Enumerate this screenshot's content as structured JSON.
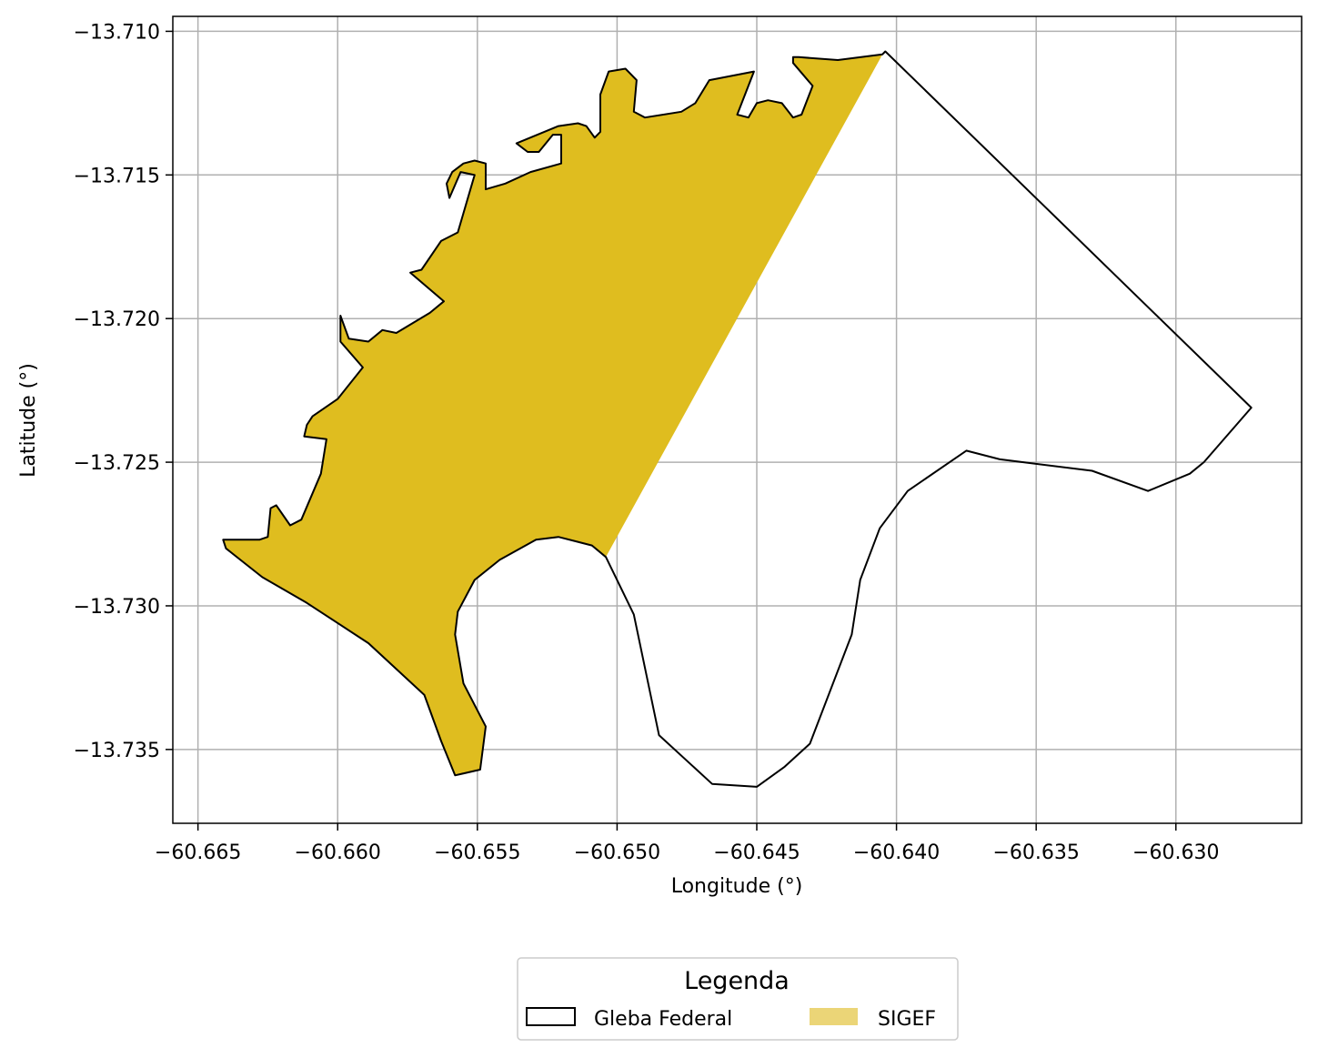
{
  "chart_data": {
    "type": "map",
    "xlabel": "Longitude (°)",
    "ylabel": "Latitude (°)",
    "xlim": [
      -60.6659,
      -60.6255
    ],
    "ylim": [
      -13.73757,
      -13.70948
    ],
    "xticks": [
      -60.665,
      -60.66,
      -60.655,
      -60.65,
      -60.645,
      -60.64,
      -60.635,
      -60.63
    ],
    "xtick_labels": [
      "−60.665",
      "−60.660",
      "−60.655",
      "−60.650",
      "−60.645",
      "−60.640",
      "−60.635",
      "−60.630"
    ],
    "yticks": [
      -13.71,
      -13.715,
      -13.72,
      -13.725,
      -13.73,
      -13.735
    ],
    "ytick_labels": [
      "−13.710",
      "−13.715",
      "−13.720",
      "−13.725",
      "−13.730",
      "−13.735"
    ],
    "grid": true,
    "legend": {
      "title": "Legenda",
      "position": "bottom-center",
      "entries": [
        {
          "label": "Gleba Federal",
          "style": "outline"
        },
        {
          "label": "SIGEF",
          "style": "filled"
        }
      ]
    },
    "colors": {
      "sigef_fill": "#dfbd1f",
      "sigef_legend": "#ebd577",
      "boundary": "#000000",
      "grid": "#b0b0b0"
    },
    "layers": [
      {
        "name": "SIGEF",
        "coordinates": [
          [
            -60.6405,
            -13.7108
          ],
          [
            -60.6504,
            -13.7283
          ],
          [
            -60.6509,
            -13.7279
          ],
          [
            -60.6521,
            -13.7276
          ],
          [
            -60.6529,
            -13.7277
          ],
          [
            -60.6542,
            -13.7284
          ],
          [
            -60.6551,
            -13.7291
          ],
          [
            -60.6557,
            -13.7302
          ],
          [
            -60.6558,
            -13.731
          ],
          [
            -60.6555,
            -13.7327
          ],
          [
            -60.6547,
            -13.7342
          ],
          [
            -60.6549,
            -13.7357
          ],
          [
            -60.6558,
            -13.7359
          ],
          [
            -60.6563,
            -13.7347
          ],
          [
            -60.6569,
            -13.7331
          ],
          [
            -60.6589,
            -13.7313
          ],
          [
            -60.6611,
            -13.7299
          ],
          [
            -60.6627,
            -13.729
          ],
          [
            -60.664,
            -13.728
          ],
          [
            -60.6641,
            -13.7277
          ],
          [
            -60.6628,
            -13.7277
          ],
          [
            -60.6625,
            -13.7276
          ],
          [
            -60.6624,
            -13.7266
          ],
          [
            -60.6622,
            -13.7265
          ],
          [
            -60.6617,
            -13.7272
          ],
          [
            -60.6613,
            -13.727
          ],
          [
            -60.6606,
            -13.7254
          ],
          [
            -60.6604,
            -13.7242
          ],
          [
            -60.6612,
            -13.7241
          ],
          [
            -60.6611,
            -13.7237
          ],
          [
            -60.6609,
            -13.7234
          ],
          [
            -60.66,
            -13.7228
          ],
          [
            -60.6591,
            -13.7217
          ],
          [
            -60.6599,
            -13.7208
          ],
          [
            -60.6599,
            -13.7199
          ],
          [
            -60.6596,
            -13.7207
          ],
          [
            -60.6589,
            -13.7208
          ],
          [
            -60.6584,
            -13.7204
          ],
          [
            -60.6579,
            -13.7205
          ],
          [
            -60.6567,
            -13.7198
          ],
          [
            -60.6562,
            -13.7194
          ],
          [
            -60.6574,
            -13.7184
          ],
          [
            -60.657,
            -13.7183
          ],
          [
            -60.6563,
            -13.7173
          ],
          [
            -60.6557,
            -13.717
          ],
          [
            -60.6551,
            -13.715
          ],
          [
            -60.6556,
            -13.7149
          ],
          [
            -60.656,
            -13.7158
          ],
          [
            -60.6561,
            -13.7153
          ],
          [
            -60.6559,
            -13.7149
          ],
          [
            -60.6555,
            -13.7146
          ],
          [
            -60.6551,
            -13.7145
          ],
          [
            -60.6547,
            -13.7146
          ],
          [
            -60.6547,
            -13.7155
          ],
          [
            -60.654,
            -13.7153
          ],
          [
            -60.6531,
            -13.7149
          ],
          [
            -60.652,
            -13.7146
          ],
          [
            -60.652,
            -13.7136
          ],
          [
            -60.6523,
            -13.7136
          ],
          [
            -60.6528,
            -13.7142
          ],
          [
            -60.6532,
            -13.7142
          ],
          [
            -60.6536,
            -13.7139
          ],
          [
            -60.6521,
            -13.7133
          ],
          [
            -60.6514,
            -13.7132
          ],
          [
            -60.6511,
            -13.7133
          ],
          [
            -60.6508,
            -13.7137
          ],
          [
            -60.6506,
            -13.7135
          ],
          [
            -60.6506,
            -13.7122
          ],
          [
            -60.6503,
            -13.7114
          ],
          [
            -60.6497,
            -13.7113
          ],
          [
            -60.6493,
            -13.7117
          ],
          [
            -60.6494,
            -13.7128
          ],
          [
            -60.649,
            -13.713
          ],
          [
            -60.6477,
            -13.7128
          ],
          [
            -60.6472,
            -13.7125
          ],
          [
            -60.6467,
            -13.7117
          ],
          [
            -60.6451,
            -13.7114
          ],
          [
            -60.6457,
            -13.7129
          ],
          [
            -60.6453,
            -13.713
          ],
          [
            -60.645,
            -13.7125
          ],
          [
            -60.6446,
            -13.7124
          ],
          [
            -60.6441,
            -13.7125
          ],
          [
            -60.6437,
            -13.713
          ],
          [
            -60.6434,
            -13.7129
          ],
          [
            -60.643,
            -13.7119
          ],
          [
            -60.6437,
            -13.7111
          ],
          [
            -60.6437,
            -13.7109
          ],
          [
            -60.6435,
            -13.7109
          ],
          [
            -60.6421,
            -13.711
          ],
          [
            -60.6405,
            -13.7108
          ]
        ]
      },
      {
        "name": "Gleba Federal",
        "coordinates": [
          [
            -60.6405,
            -13.7108
          ],
          [
            -60.6404,
            -13.7107
          ],
          [
            -60.6273,
            -13.7231
          ],
          [
            -60.629,
            -13.725
          ],
          [
            -60.6295,
            -13.7254
          ],
          [
            -60.631,
            -13.726
          ],
          [
            -60.633,
            -13.7253
          ],
          [
            -60.6363,
            -13.7249
          ],
          [
            -60.6375,
            -13.7246
          ],
          [
            -60.6396,
            -13.726
          ],
          [
            -60.6406,
            -13.7273
          ],
          [
            -60.6413,
            -13.7291
          ],
          [
            -60.6416,
            -13.731
          ],
          [
            -60.6431,
            -13.7348
          ],
          [
            -60.644,
            -13.7356
          ],
          [
            -60.645,
            -13.7363
          ],
          [
            -60.6466,
            -13.7362
          ],
          [
            -60.6485,
            -13.7345
          ],
          [
            -60.6494,
            -13.7303
          ],
          [
            -60.6504,
            -13.7283
          ],
          [
            -60.6509,
            -13.7279
          ],
          [
            -60.6521,
            -13.7276
          ],
          [
            -60.6529,
            -13.7277
          ],
          [
            -60.6542,
            -13.7284
          ],
          [
            -60.6551,
            -13.7291
          ],
          [
            -60.6557,
            -13.7302
          ],
          [
            -60.6558,
            -13.731
          ],
          [
            -60.6555,
            -13.7327
          ],
          [
            -60.6547,
            -13.7342
          ],
          [
            -60.6549,
            -13.7357
          ],
          [
            -60.6558,
            -13.7359
          ],
          [
            -60.6563,
            -13.7347
          ],
          [
            -60.6569,
            -13.7331
          ],
          [
            -60.6589,
            -13.7313
          ],
          [
            -60.6611,
            -13.7299
          ],
          [
            -60.6627,
            -13.729
          ],
          [
            -60.664,
            -13.728
          ],
          [
            -60.6641,
            -13.7277
          ],
          [
            -60.6628,
            -13.7277
          ],
          [
            -60.6625,
            -13.7276
          ],
          [
            -60.6624,
            -13.7266
          ],
          [
            -60.6622,
            -13.7265
          ],
          [
            -60.6617,
            -13.7272
          ],
          [
            -60.6613,
            -13.727
          ],
          [
            -60.6606,
            -13.7254
          ],
          [
            -60.6604,
            -13.7242
          ],
          [
            -60.6612,
            -13.7241
          ],
          [
            -60.6611,
            -13.7237
          ],
          [
            -60.6609,
            -13.7234
          ],
          [
            -60.66,
            -13.7228
          ],
          [
            -60.6591,
            -13.7217
          ],
          [
            -60.6599,
            -13.7208
          ],
          [
            -60.6599,
            -13.7199
          ],
          [
            -60.6596,
            -13.7207
          ],
          [
            -60.6589,
            -13.7208
          ],
          [
            -60.6584,
            -13.7204
          ],
          [
            -60.6579,
            -13.7205
          ],
          [
            -60.6567,
            -13.7198
          ],
          [
            -60.6562,
            -13.7194
          ],
          [
            -60.6574,
            -13.7184
          ],
          [
            -60.657,
            -13.7183
          ],
          [
            -60.6563,
            -13.7173
          ],
          [
            -60.6557,
            -13.717
          ],
          [
            -60.6551,
            -13.715
          ],
          [
            -60.6556,
            -13.7149
          ],
          [
            -60.656,
            -13.7158
          ],
          [
            -60.6561,
            -13.7153
          ],
          [
            -60.6559,
            -13.7149
          ],
          [
            -60.6555,
            -13.7146
          ],
          [
            -60.6551,
            -13.7145
          ],
          [
            -60.6547,
            -13.7146
          ],
          [
            -60.6547,
            -13.7155
          ],
          [
            -60.654,
            -13.7153
          ],
          [
            -60.6531,
            -13.7149
          ],
          [
            -60.652,
            -13.7146
          ],
          [
            -60.652,
            -13.7136
          ],
          [
            -60.6523,
            -13.7136
          ],
          [
            -60.6528,
            -13.7142
          ],
          [
            -60.6532,
            -13.7142
          ],
          [
            -60.6536,
            -13.7139
          ],
          [
            -60.6521,
            -13.7133
          ],
          [
            -60.6514,
            -13.7132
          ],
          [
            -60.6511,
            -13.7133
          ],
          [
            -60.6508,
            -13.7137
          ],
          [
            -60.6506,
            -13.7135
          ],
          [
            -60.6506,
            -13.7122
          ],
          [
            -60.6503,
            -13.7114
          ],
          [
            -60.6497,
            -13.7113
          ],
          [
            -60.6493,
            -13.7117
          ],
          [
            -60.6494,
            -13.7128
          ],
          [
            -60.649,
            -13.713
          ],
          [
            -60.6477,
            -13.7128
          ],
          [
            -60.6472,
            -13.7125
          ],
          [
            -60.6467,
            -13.7117
          ],
          [
            -60.6451,
            -13.7114
          ],
          [
            -60.6457,
            -13.7129
          ],
          [
            -60.6453,
            -13.713
          ],
          [
            -60.645,
            -13.7125
          ],
          [
            -60.6446,
            -13.7124
          ],
          [
            -60.6441,
            -13.7125
          ],
          [
            -60.6437,
            -13.713
          ],
          [
            -60.6434,
            -13.7129
          ],
          [
            -60.643,
            -13.7119
          ],
          [
            -60.6437,
            -13.7111
          ],
          [
            -60.6437,
            -13.7109
          ],
          [
            -60.6435,
            -13.7109
          ],
          [
            -60.6421,
            -13.711
          ],
          [
            -60.6405,
            -13.7108
          ]
        ]
      }
    ]
  }
}
